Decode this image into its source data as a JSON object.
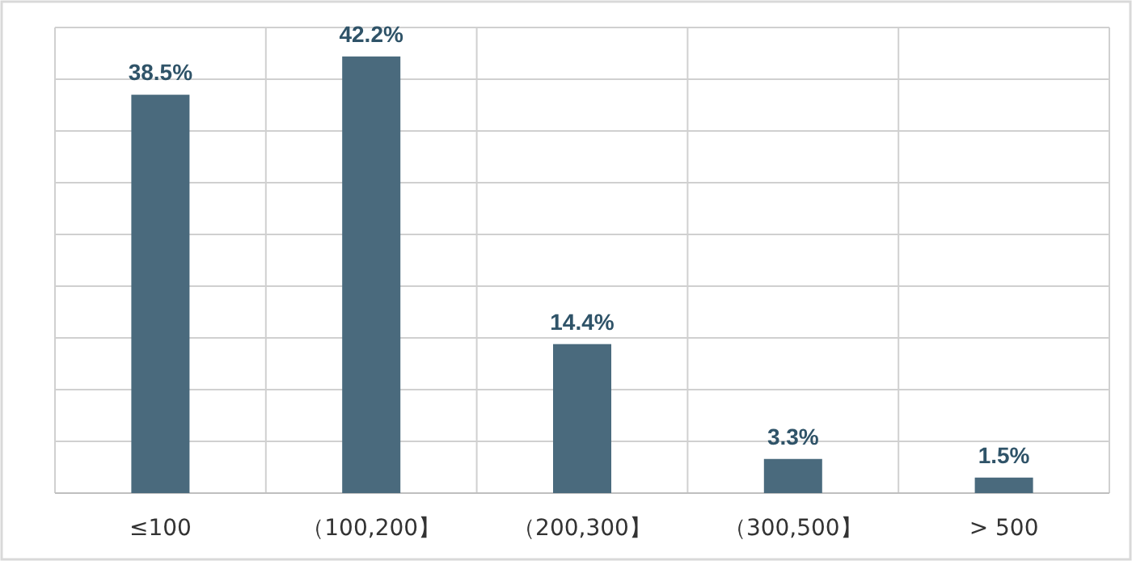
{
  "chart_data": {
    "type": "bar",
    "categories": [
      "≤100",
      "（100,200】",
      "（200,300】",
      "（300,500】",
      "> 500"
    ],
    "values": [
      38.5,
      42.2,
      14.4,
      3.3,
      1.5
    ],
    "value_labels": [
      "38.5%",
      "42.2%",
      "14.4%",
      "3.3%",
      "1.5%"
    ],
    "color": "#4a6a7d",
    "ylim": [
      0,
      45
    ],
    "yticks": [
      {
        "value": 0,
        "label": null
      },
      {
        "value": 5,
        "label": null
      },
      {
        "value": 10,
        "label": null
      },
      {
        "value": 15,
        "label": null
      },
      {
        "value": 20,
        "label": null
      },
      {
        "value": 25,
        "label": null
      },
      {
        "value": 30,
        "label": null
      },
      {
        "value": 35,
        "label": null
      },
      {
        "value": 40,
        "label": null
      },
      {
        "value": 45,
        "label": null
      }
    ],
    "grid": true,
    "tick_labels": "x"
  }
}
